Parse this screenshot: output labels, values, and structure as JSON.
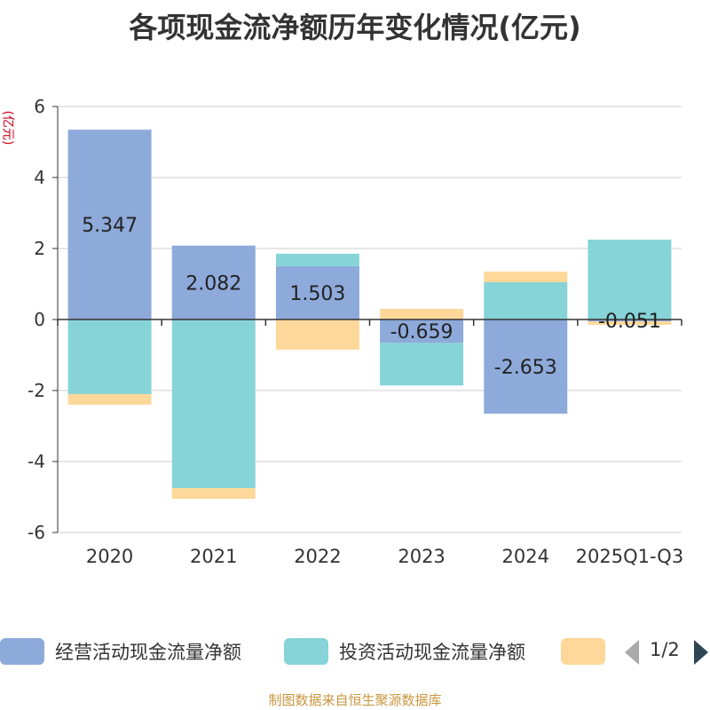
{
  "title": "各项现金流净额历年变化情况(亿元)",
  "chart_data": {
    "type": "bar",
    "stacked": true,
    "ylabel": "(亿元)",
    "ylim": [
      -6,
      6
    ],
    "yticks": [
      6,
      4,
      2,
      0,
      -2,
      -4,
      -6
    ],
    "grid": true,
    "categories": [
      "2020",
      "2021",
      "2022",
      "2023",
      "2024",
      "2025Q1-Q3"
    ],
    "series": [
      {
        "name": "经营活动现金流量净额",
        "color": "#8eaadb",
        "values": [
          5.347,
          2.082,
          1.503,
          -0.659,
          -2.653,
          -0.051
        ],
        "data_labels": [
          "5.347",
          "2.082",
          "1.503",
          "-0.659",
          "-2.653",
          "-0.051"
        ]
      },
      {
        "name": "投资活动现金流量净额",
        "color": "#86d4d8",
        "values": [
          -2.1,
          -4.75,
          0.35,
          -1.2,
          1.05,
          2.25
        ]
      },
      {
        "name": "",
        "color": "#fdd89a",
        "values": [
          -0.3,
          -0.3,
          -0.85,
          0.3,
          0.3,
          -0.1
        ]
      }
    ],
    "legend": {
      "position": "bottom",
      "page": "1/2"
    }
  },
  "source": "制图数据来自恒生聚源数据库"
}
